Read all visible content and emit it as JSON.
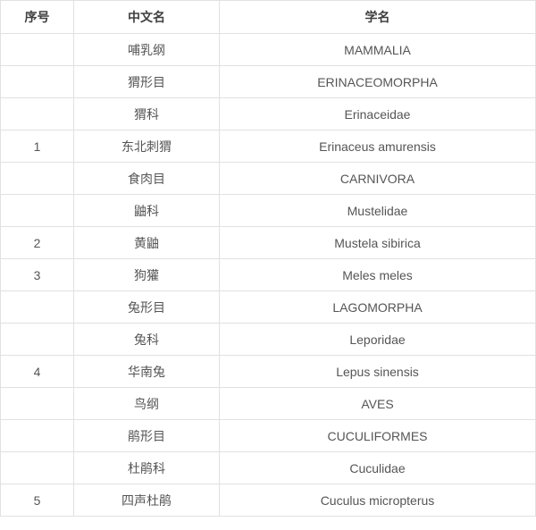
{
  "table": {
    "columns": [
      {
        "key": "no",
        "label": "序号"
      },
      {
        "key": "cn",
        "label": "中文名"
      },
      {
        "key": "sci",
        "label": "学名"
      }
    ],
    "rows": [
      {
        "no": "",
        "cn": "哺乳纲",
        "sci": "MAMMALIA"
      },
      {
        "no": "",
        "cn": "猬形目",
        "sci": "ERINACEOMORPHA"
      },
      {
        "no": "",
        "cn": "猬科",
        "sci": "Erinaceidae"
      },
      {
        "no": "1",
        "cn": "东北刺猬",
        "sci": "Erinaceus amurensis"
      },
      {
        "no": "",
        "cn": "食肉目",
        "sci": "CARNIVORA"
      },
      {
        "no": "",
        "cn": "鼬科",
        "sci": "Mustelidae"
      },
      {
        "no": "2",
        "cn": "黄鼬",
        "sci": "Mustela sibirica"
      },
      {
        "no": "3",
        "cn": "狗獾",
        "sci": "Meles meles"
      },
      {
        "no": "",
        "cn": "兔形目",
        "sci": "LAGOMORPHA"
      },
      {
        "no": "",
        "cn": "兔科",
        "sci": "Leporidae"
      },
      {
        "no": "4",
        "cn": "华南兔",
        "sci": "Lepus sinensis"
      },
      {
        "no": "",
        "cn": "鸟纲",
        "sci": "AVES"
      },
      {
        "no": "",
        "cn": "鹃形目",
        "sci": "CUCULIFORMES"
      },
      {
        "no": "",
        "cn": "杜鹃科",
        "sci": "Cuculidae"
      },
      {
        "no": "5",
        "cn": "四声杜鹃",
        "sci": "Cuculus micropterus"
      }
    ],
    "colors": {
      "border": "#e1e1e1",
      "header_text": "#3f3f3f",
      "body_text": "#555555",
      "background": "#ffffff"
    }
  }
}
